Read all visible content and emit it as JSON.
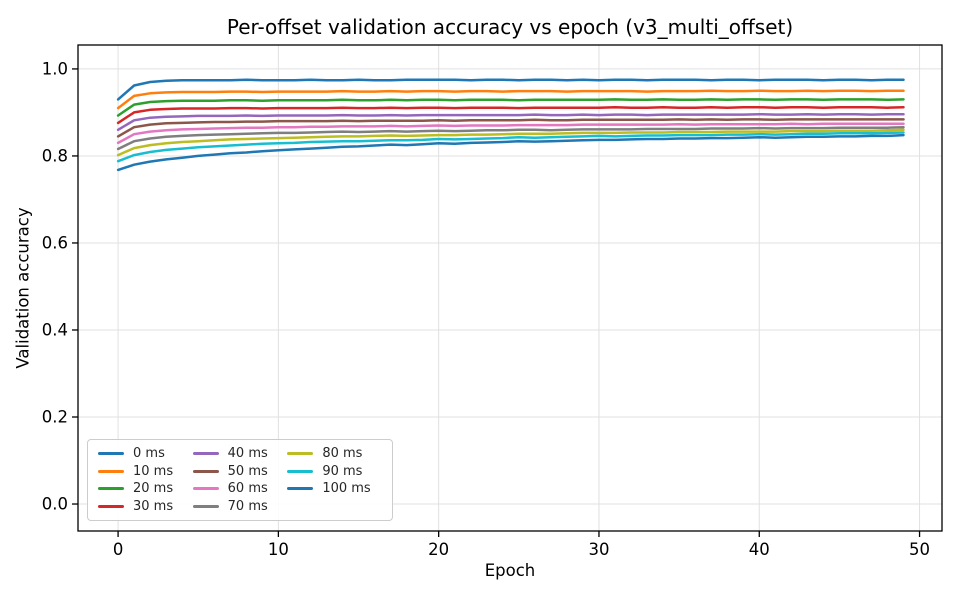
{
  "figure": {
    "background": "#ffffff",
    "axis_color": "#000000",
    "grid_color": "#e0e0e0",
    "legend_border": "#cccccc"
  },
  "chart_data": {
    "type": "line",
    "title": "Per-offset validation accuracy vs epoch (v3_multi_offset)",
    "xlabel": "Epoch",
    "ylabel": "Validation accuracy",
    "xlim": [
      -2.5,
      51.4
    ],
    "ylim": [
      -0.062,
      1.055
    ],
    "xticks": [
      0,
      10,
      20,
      30,
      40,
      50
    ],
    "xtick_labels": [
      "0",
      "10",
      "20",
      "30",
      "40",
      "50"
    ],
    "yticks": [
      0.0,
      0.2,
      0.4,
      0.6,
      0.8,
      1.0
    ],
    "ytick_labels": [
      "0.0",
      "0.2",
      "0.4",
      "0.6",
      "0.8",
      "1.0"
    ],
    "grid": true,
    "legend_position": "lower-left",
    "legend_columns": 3,
    "line_width": 2.5,
    "x": [
      0,
      1,
      2,
      3,
      4,
      5,
      6,
      7,
      8,
      9,
      10,
      11,
      12,
      13,
      14,
      15,
      16,
      17,
      18,
      19,
      20,
      21,
      22,
      23,
      24,
      25,
      26,
      27,
      28,
      29,
      30,
      31,
      32,
      33,
      34,
      35,
      36,
      37,
      38,
      39,
      40,
      41,
      42,
      43,
      44,
      45,
      46,
      47,
      48,
      49
    ],
    "series": [
      {
        "name": "0 ms",
        "color": "#1f77b4",
        "values": [
          0.93,
          0.962,
          0.97,
          0.973,
          0.974,
          0.974,
          0.974,
          0.974,
          0.975,
          0.974,
          0.974,
          0.974,
          0.975,
          0.974,
          0.974,
          0.975,
          0.974,
          0.974,
          0.975,
          0.975,
          0.975,
          0.975,
          0.974,
          0.975,
          0.975,
          0.974,
          0.975,
          0.975,
          0.974,
          0.975,
          0.974,
          0.975,
          0.975,
          0.974,
          0.975,
          0.975,
          0.975,
          0.974,
          0.975,
          0.975,
          0.974,
          0.975,
          0.975,
          0.975,
          0.974,
          0.975,
          0.975,
          0.974,
          0.975,
          0.975
        ]
      },
      {
        "name": "10 ms",
        "color": "#ff7f0e",
        "values": [
          0.91,
          0.938,
          0.944,
          0.946,
          0.947,
          0.947,
          0.947,
          0.948,
          0.948,
          0.947,
          0.948,
          0.948,
          0.948,
          0.948,
          0.949,
          0.948,
          0.948,
          0.949,
          0.948,
          0.949,
          0.949,
          0.948,
          0.949,
          0.949,
          0.948,
          0.949,
          0.949,
          0.949,
          0.948,
          0.949,
          0.949,
          0.949,
          0.949,
          0.948,
          0.949,
          0.949,
          0.949,
          0.95,
          0.949,
          0.949,
          0.95,
          0.949,
          0.949,
          0.95,
          0.949,
          0.95,
          0.95,
          0.949,
          0.95,
          0.95
        ]
      },
      {
        "name": "20 ms",
        "color": "#2ca02c",
        "values": [
          0.893,
          0.918,
          0.924,
          0.926,
          0.927,
          0.927,
          0.927,
          0.928,
          0.928,
          0.927,
          0.928,
          0.928,
          0.928,
          0.928,
          0.929,
          0.928,
          0.928,
          0.929,
          0.928,
          0.929,
          0.929,
          0.928,
          0.929,
          0.929,
          0.929,
          0.928,
          0.929,
          0.929,
          0.929,
          0.929,
          0.929,
          0.93,
          0.929,
          0.929,
          0.93,
          0.929,
          0.929,
          0.93,
          0.929,
          0.93,
          0.93,
          0.929,
          0.93,
          0.93,
          0.929,
          0.93,
          0.93,
          0.93,
          0.929,
          0.93
        ]
      },
      {
        "name": "30 ms",
        "color": "#d62728",
        "values": [
          0.876,
          0.9,
          0.906,
          0.908,
          0.909,
          0.909,
          0.909,
          0.91,
          0.91,
          0.909,
          0.91,
          0.91,
          0.91,
          0.91,
          0.911,
          0.91,
          0.91,
          0.911,
          0.91,
          0.911,
          0.911,
          0.91,
          0.911,
          0.911,
          0.911,
          0.91,
          0.911,
          0.911,
          0.911,
          0.911,
          0.911,
          0.912,
          0.911,
          0.911,
          0.912,
          0.911,
          0.911,
          0.912,
          0.911,
          0.912,
          0.912,
          0.911,
          0.912,
          0.912,
          0.911,
          0.912,
          0.912,
          0.912,
          0.911,
          0.912
        ]
      },
      {
        "name": "40 ms",
        "color": "#9467bd",
        "values": [
          0.86,
          0.882,
          0.888,
          0.89,
          0.891,
          0.892,
          0.892,
          0.892,
          0.893,
          0.892,
          0.893,
          0.893,
          0.893,
          0.893,
          0.894,
          0.893,
          0.893,
          0.894,
          0.893,
          0.894,
          0.894,
          0.894,
          0.894,
          0.894,
          0.894,
          0.894,
          0.895,
          0.894,
          0.894,
          0.895,
          0.894,
          0.895,
          0.895,
          0.894,
          0.895,
          0.895,
          0.895,
          0.895,
          0.895,
          0.895,
          0.896,
          0.895,
          0.895,
          0.896,
          0.895,
          0.896,
          0.896,
          0.895,
          0.896,
          0.896
        ]
      },
      {
        "name": "50 ms",
        "color": "#8c564b",
        "values": [
          0.845,
          0.866,
          0.872,
          0.875,
          0.876,
          0.877,
          0.878,
          0.878,
          0.879,
          0.879,
          0.88,
          0.88,
          0.88,
          0.88,
          0.881,
          0.88,
          0.881,
          0.881,
          0.881,
          0.881,
          0.882,
          0.881,
          0.882,
          0.882,
          0.882,
          0.882,
          0.883,
          0.882,
          0.882,
          0.883,
          0.883,
          0.883,
          0.883,
          0.883,
          0.883,
          0.884,
          0.883,
          0.884,
          0.883,
          0.884,
          0.884,
          0.883,
          0.884,
          0.884,
          0.884,
          0.884,
          0.884,
          0.884,
          0.884,
          0.884
        ]
      },
      {
        "name": "60 ms",
        "color": "#e377c2",
        "values": [
          0.83,
          0.85,
          0.856,
          0.859,
          0.861,
          0.862,
          0.863,
          0.864,
          0.865,
          0.865,
          0.866,
          0.866,
          0.867,
          0.867,
          0.868,
          0.868,
          0.868,
          0.869,
          0.868,
          0.869,
          0.87,
          0.869,
          0.87,
          0.87,
          0.87,
          0.871,
          0.871,
          0.871,
          0.871,
          0.872,
          0.872,
          0.872,
          0.872,
          0.872,
          0.872,
          0.873,
          0.872,
          0.873,
          0.873,
          0.873,
          0.873,
          0.873,
          0.874,
          0.873,
          0.874,
          0.874,
          0.874,
          0.874,
          0.874,
          0.874
        ]
      },
      {
        "name": "70 ms",
        "color": "#7f7f7f",
        "values": [
          0.816,
          0.834,
          0.84,
          0.844,
          0.846,
          0.848,
          0.849,
          0.85,
          0.851,
          0.852,
          0.853,
          0.853,
          0.854,
          0.855,
          0.856,
          0.855,
          0.856,
          0.857,
          0.856,
          0.857,
          0.858,
          0.857,
          0.858,
          0.859,
          0.859,
          0.86,
          0.86,
          0.859,
          0.86,
          0.861,
          0.861,
          0.861,
          0.861,
          0.862,
          0.862,
          0.862,
          0.862,
          0.863,
          0.863,
          0.863,
          0.864,
          0.863,
          0.864,
          0.864,
          0.864,
          0.865,
          0.865,
          0.865,
          0.865,
          0.866
        ]
      },
      {
        "name": "80 ms",
        "color": "#bcbd22",
        "values": [
          0.802,
          0.818,
          0.825,
          0.829,
          0.832,
          0.834,
          0.836,
          0.838,
          0.839,
          0.84,
          0.841,
          0.842,
          0.843,
          0.844,
          0.845,
          0.845,
          0.846,
          0.847,
          0.846,
          0.847,
          0.848,
          0.848,
          0.849,
          0.849,
          0.85,
          0.851,
          0.851,
          0.851,
          0.852,
          0.853,
          0.853,
          0.853,
          0.854,
          0.854,
          0.854,
          0.855,
          0.855,
          0.855,
          0.856,
          0.856,
          0.856,
          0.856,
          0.857,
          0.857,
          0.857,
          0.858,
          0.858,
          0.858,
          0.859,
          0.86
        ]
      },
      {
        "name": "90 ms",
        "color": "#17becf",
        "values": [
          0.788,
          0.802,
          0.809,
          0.814,
          0.817,
          0.82,
          0.822,
          0.824,
          0.826,
          0.828,
          0.829,
          0.83,
          0.832,
          0.833,
          0.834,
          0.834,
          0.835,
          0.836,
          0.836,
          0.837,
          0.839,
          0.838,
          0.839,
          0.84,
          0.841,
          0.843,
          0.842,
          0.843,
          0.844,
          0.845,
          0.846,
          0.845,
          0.846,
          0.847,
          0.847,
          0.848,
          0.848,
          0.848,
          0.849,
          0.849,
          0.85,
          0.849,
          0.85,
          0.851,
          0.851,
          0.852,
          0.852,
          0.852,
          0.853,
          0.854
        ]
      },
      {
        "name": "100 ms",
        "color": "#1f77b4",
        "values": [
          0.768,
          0.78,
          0.787,
          0.792,
          0.796,
          0.8,
          0.803,
          0.806,
          0.808,
          0.811,
          0.813,
          0.815,
          0.817,
          0.819,
          0.821,
          0.822,
          0.824,
          0.826,
          0.825,
          0.827,
          0.829,
          0.828,
          0.83,
          0.831,
          0.832,
          0.834,
          0.833,
          0.834,
          0.835,
          0.836,
          0.837,
          0.837,
          0.838,
          0.839,
          0.839,
          0.84,
          0.84,
          0.841,
          0.841,
          0.842,
          0.843,
          0.842,
          0.843,
          0.844,
          0.844,
          0.845,
          0.845,
          0.846,
          0.846,
          0.848
        ]
      }
    ]
  }
}
